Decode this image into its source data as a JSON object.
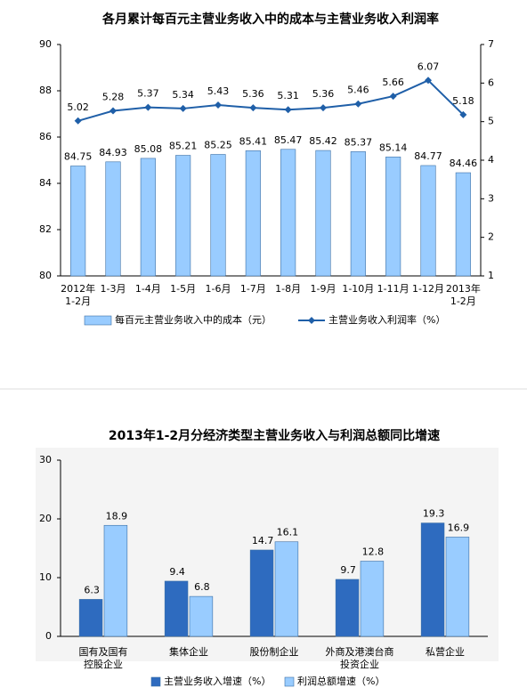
{
  "chart_data": [
    {
      "type": "bar",
      "title": "各月累计每百元主营业务收入中的成本与主营业务收入利润率",
      "categories": [
        "2012年\n1-2月",
        "1-3月",
        "1-4月",
        "1-5月",
        "1-6月",
        "1-7月",
        "1-8月",
        "1-9月",
        "1-10月",
        "1-11月",
        "1-12月",
        "2013年\n1-2月"
      ],
      "series": [
        {
          "name": "每百元主营业务收入中的成本（元）",
          "type": "bar",
          "color": "#99ccff",
          "values": [
            84.75,
            84.93,
            85.08,
            85.21,
            85.25,
            85.41,
            85.47,
            85.42,
            85.37,
            85.14,
            84.77,
            84.46
          ]
        },
        {
          "name": "主营业务收入利润率（%）",
          "type": "line",
          "axis": "y2",
          "color": "#1f5fa8",
          "values": [
            5.02,
            5.28,
            5.37,
            5.34,
            5.43,
            5.36,
            5.31,
            5.36,
            5.46,
            5.66,
            6.07,
            5.18
          ]
        }
      ],
      "ylim": [
        80,
        90
      ],
      "yticks": [
        80,
        82,
        84,
        86,
        88,
        90
      ],
      "y2lim": [
        1,
        7
      ],
      "y2ticks": [
        1,
        2,
        3,
        4,
        5,
        6,
        7
      ],
      "grid": false
    },
    {
      "type": "bar",
      "title": "2013年1-2月分经济类型主营业务收入与利润总额同比增速",
      "categories": [
        "国有及国有\n控股企业",
        "集体企业",
        "股份制企业",
        "外商及港澳台商\n投资企业",
        "私营企业"
      ],
      "series": [
        {
          "name": "主营业务收入增速（%）",
          "type": "bar",
          "color": "#2e6bbf",
          "values": [
            6.3,
            9.4,
            14.7,
            9.7,
            19.3
          ]
        },
        {
          "name": "利润总额增速（%）",
          "type": "bar",
          "color": "#99ccff",
          "values": [
            18.9,
            6.8,
            16.1,
            12.8,
            16.9
          ]
        }
      ],
      "ylim": [
        0,
        30
      ],
      "yticks": [
        0,
        10,
        20,
        30
      ],
      "grid": false
    }
  ]
}
